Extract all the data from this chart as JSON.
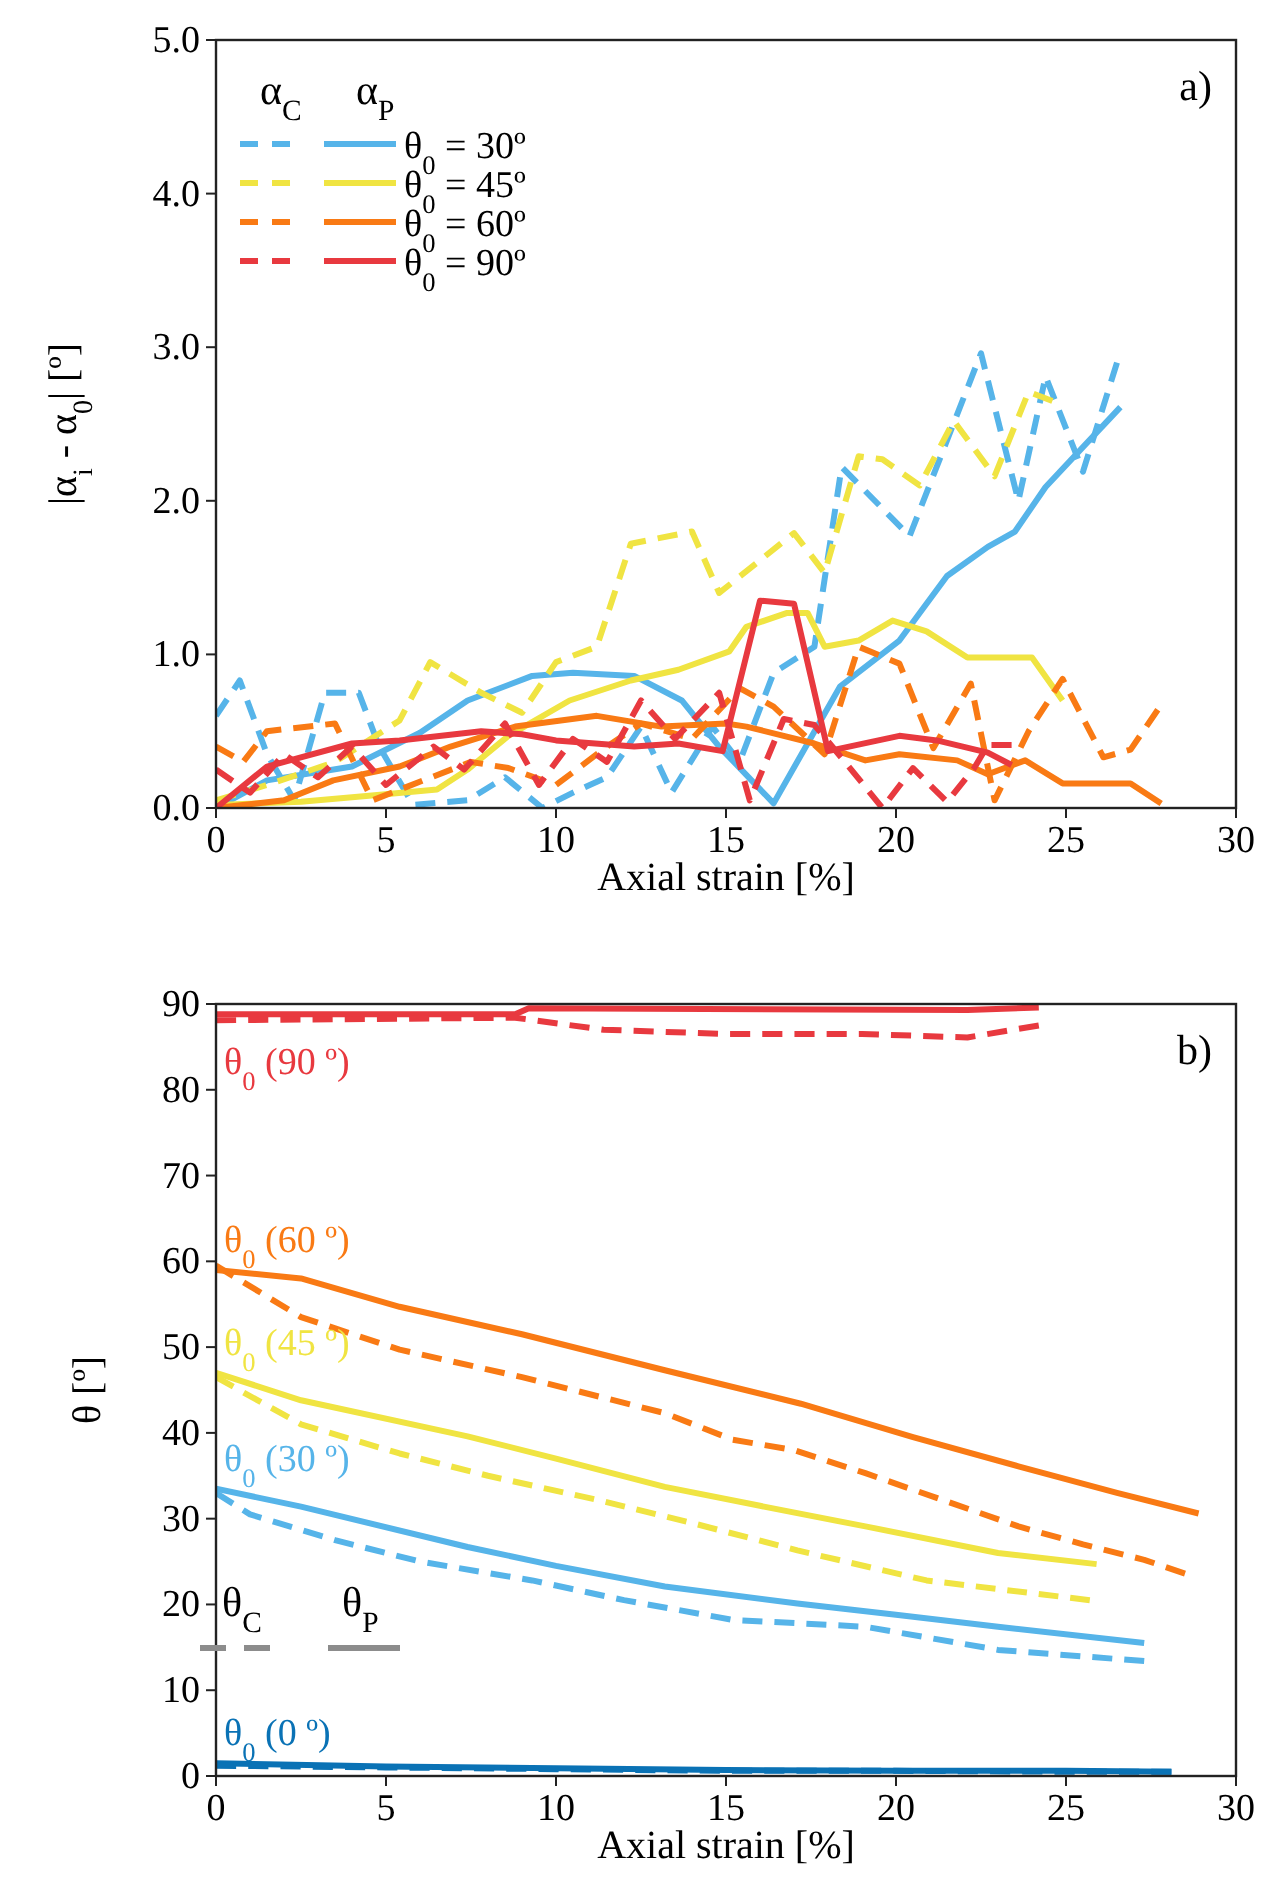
{
  "chart_data": [
    {
      "type": "line",
      "title": "a)",
      "xlabel": "Axial strain [%]",
      "ylabel": "|α$_{i}$ - α$_{0}$| [º]",
      "xlim": [
        0,
        30
      ],
      "xticks": [
        0,
        5,
        10,
        15,
        20,
        25,
        30
      ],
      "ylim": [
        0,
        5
      ],
      "yticks": [
        {
          "value": 0,
          "label": "0.0"
        },
        {
          "value": 1,
          "label": "1.0"
        },
        {
          "value": 2,
          "label": "2.0"
        },
        {
          "value": 3,
          "label": "3.0"
        },
        {
          "value": 4,
          "label": "4.0"
        },
        {
          "value": 5,
          "label": "5.0"
        }
      ],
      "legend": "top left",
      "annotations": [
        "α$_{C}$",
        "α$_{P}$"
      ],
      "series": [
        {
          "color": "#56b4e9",
          "line_style": "dashed",
          "x": [
            0,
            0.7,
            1.5,
            2.3,
            3.2,
            4.2,
            4.8,
            5.8,
            7.4,
            8.5,
            9.6,
            10.5,
            11.5,
            12.5,
            13.4,
            14.6,
            15.4,
            16.4,
            17.6,
            18.4,
            20.4,
            22.5,
            23.6,
            24.4,
            25.5,
            26.5
          ],
          "values": [
            0.6,
            0.83,
            0.35,
            0.05,
            0.75,
            0.75,
            0.4,
            0.02,
            0.05,
            0.2,
            0,
            0.1,
            0.2,
            0.53,
            0.1,
            0.53,
            0.3,
            0.88,
            1.05,
            2.22,
            1.77,
            2.96,
            2,
            2.81,
            2.19,
            2.9
          ]
        },
        {
          "name": "θ$_{0}$ = 30º",
          "color": "#56b4e9",
          "line_style": "solid",
          "x": [
            0,
            1.5,
            4,
            6,
            7.4,
            9.3,
            10.5,
            12.3,
            13.7,
            14.8,
            16.4,
            18.35,
            20.1,
            21.5,
            22.7,
            23.5,
            24.4,
            26.6
          ],
          "values": [
            0,
            0.18,
            0.27,
            0.49,
            0.7,
            0.86,
            0.88,
            0.86,
            0.7,
            0.4,
            0.03,
            0.79,
            1.09,
            1.51,
            1.7,
            1.8,
            2.09,
            2.61
          ]
        },
        {
          "color": "#f0e442",
          "line_style": "dashed",
          "x": [
            0,
            1.5,
            3.5,
            5.4,
            6.3,
            7.8,
            9,
            10,
            11.2,
            12.2,
            14,
            14.8,
            17,
            17.9,
            18.9,
            19.6,
            20.7,
            21.7,
            22.9,
            23.9,
            24.6
          ],
          "values": [
            0.05,
            0.15,
            0.3,
            0.57,
            0.95,
            0.75,
            0.62,
            0.95,
            1.05,
            1.72,
            1.8,
            1.4,
            1.79,
            1.53,
            2.29,
            2.27,
            2.1,
            2.52,
            2.16,
            2.71,
            2.65
          ]
        },
        {
          "name": "θ$_{0}$ = 45º",
          "color": "#f0e442",
          "line_style": "solid",
          "x": [
            0,
            2.5,
            4.5,
            6.5,
            7.4,
            8.6,
            10.4,
            12.2,
            13.6,
            15.1,
            15.6,
            16.8,
            17.4,
            17.9,
            18.9,
            19.9,
            20.9,
            22.1,
            24,
            24.9
          ],
          "values": [
            0.02,
            0.04,
            0.08,
            0.12,
            0.25,
            0.47,
            0.7,
            0.83,
            0.9,
            1.02,
            1.18,
            1.27,
            1.27,
            1.05,
            1.09,
            1.22,
            1.15,
            0.98,
            0.98,
            0.7
          ]
        },
        {
          "color": "#f97a14",
          "line_style": "dashed",
          "x": [
            0,
            0.8,
            1.5,
            3.5,
            4.6,
            6.1,
            7.5,
            8.6,
            10,
            11.5,
            12.5,
            14,
            15.4,
            16.4,
            17.9,
            18.9,
            20.1,
            21.1,
            22.2,
            22.9,
            23.9,
            24.9,
            26.1,
            26.9,
            27.7
          ],
          "values": [
            0.4,
            0.3,
            0.5,
            0.55,
            0.05,
            0.18,
            0.3,
            0.26,
            0.15,
            0.4,
            0.55,
            0.45,
            0.78,
            0.66,
            0.35,
            1.05,
            0.94,
            0.39,
            0.81,
            0.05,
            0.5,
            0.84,
            0.33,
            0.38,
            0.64
          ]
        },
        {
          "name": "θ$_{0}$ = 60º",
          "color": "#f97a14",
          "line_style": "solid",
          "x": [
            0,
            2,
            3.45,
            5.4,
            6.9,
            8.8,
            11.2,
            13.1,
            15,
            15.6,
            17.6,
            19.1,
            20.1,
            21.8,
            22.7,
            23.8,
            24.9,
            26.9,
            27.8
          ],
          "values": [
            0,
            0.05,
            0.18,
            0.27,
            0.4,
            0.53,
            0.6,
            0.53,
            0.55,
            0.53,
            0.42,
            0.31,
            0.35,
            0.31,
            0.22,
            0.31,
            0.16,
            0.16,
            0.03
          ]
        },
        {
          "color": "#e8393f",
          "line_style": "dashed",
          "x": [
            0,
            1,
            2,
            3,
            4,
            5,
            6.4,
            7.3,
            8.5,
            9.5,
            10.5,
            11.5,
            12.5,
            13.5,
            14.8,
            15.7,
            16.7,
            17.6,
            18.5,
            19.6,
            20.5,
            21.5,
            22.3,
            22.7,
            23.4
          ],
          "values": [
            0.25,
            0.1,
            0.35,
            0.2,
            0.4,
            0.15,
            0.4,
            0.25,
            0.55,
            0.15,
            0.45,
            0.3,
            0.7,
            0.45,
            0.75,
            0.05,
            0.58,
            0.54,
            0.3,
            0,
            0.26,
            0.04,
            0.26,
            0.41,
            0.41
          ]
        },
        {
          "name": "θ$_{0}$ = 90º",
          "color": "#e8393f",
          "line_style": "solid",
          "x": [
            0,
            1.5,
            4,
            5.4,
            7.8,
            9,
            10,
            12.3,
            13.6,
            14.9,
            16,
            17,
            18,
            20.1,
            21.2,
            22.7,
            23.4
          ],
          "values": [
            0,
            0.27,
            0.42,
            0.44,
            0.5,
            0.48,
            0.44,
            0.4,
            0.42,
            0.37,
            1.35,
            1.33,
            0.37,
            0.47,
            0.44,
            0.36,
            0.28
          ]
        }
      ]
    },
    {
      "type": "line",
      "title": "b)",
      "xlabel": "Axial strain [%]",
      "ylabel": "θ [º]",
      "xlim": [
        0,
        30
      ],
      "xticks": [
        0,
        5,
        10,
        15,
        20,
        25,
        30
      ],
      "ylim": [
        0,
        90
      ],
      "yticks": [
        0,
        10,
        20,
        30,
        40,
        50,
        60,
        70,
        80,
        90
      ],
      "legend": false,
      "annotations": [
        "θ$_{C}$",
        "θ$_{P}$"
      ],
      "series": [
        {
          "name": "θ$_{0}$ (90 º)",
          "color": "#e8393f",
          "line_style": "solid",
          "x": [
            0,
            8.8,
            9.2,
            22.1,
            24.2
          ],
          "values": [
            88.8,
            88.8,
            89.5,
            89.3,
            89.6
          ]
        },
        {
          "color": "#e8393f",
          "line_style": "dashed",
          "x": [
            0,
            8.8,
            11.4,
            15,
            19,
            22.1,
            24.2
          ],
          "values": [
            88.1,
            88.4,
            87,
            86.5,
            86.5,
            86.1,
            87.5
          ]
        },
        {
          "name": "θ$_{0}$ (60 º)",
          "color": "#f97a14",
          "line_style": "solid",
          "x": [
            0,
            2.5,
            5.4,
            9,
            13.2,
            17.2,
            20.5,
            23.6,
            26.5,
            28.9
          ],
          "values": [
            59,
            58,
            54.7,
            51.5,
            47.3,
            43.4,
            39.5,
            36.1,
            33,
            30.6
          ]
        },
        {
          "color": "#f97a14",
          "line_style": "dashed",
          "x": [
            0,
            2.5,
            5.4,
            9,
            13.2,
            15.2,
            17,
            19.1,
            21.5,
            23.6,
            25.5,
            27.3,
            28.5
          ],
          "values": [
            59.5,
            53.5,
            49.7,
            46.5,
            42.3,
            39.2,
            38,
            35.3,
            32,
            29.1,
            27,
            25.2,
            23.6
          ]
        },
        {
          "name": "θ$_{0}$ (45 º)",
          "color": "#f0e442",
          "line_style": "solid",
          "x": [
            0,
            2.5,
            7.4,
            10,
            13.2,
            16,
            19.1,
            23,
            25.9
          ],
          "values": [
            47,
            43.8,
            39.6,
            37,
            33.7,
            31.5,
            29.1,
            26,
            24.7
          ]
        },
        {
          "color": "#f0e442",
          "line_style": "dashed",
          "x": [
            0,
            2.5,
            5.4,
            8,
            11.2,
            14,
            17.1,
            20.9,
            25.7
          ],
          "values": [
            46.5,
            41,
            37.6,
            35,
            32.2,
            29.5,
            26.3,
            22.8,
            20.5
          ]
        },
        {
          "name": "θ$_{0}$ (30 º)",
          "color": "#56b4e9",
          "line_style": "solid",
          "x": [
            0,
            2.5,
            7.4,
            10,
            13.2,
            17.1,
            20,
            23,
            27.3
          ],
          "values": [
            33.5,
            31.4,
            26.7,
            24.5,
            22.1,
            20.1,
            18.8,
            17.4,
            15.5
          ]
        },
        {
          "color": "#56b4e9",
          "line_style": "dashed",
          "x": [
            0,
            1,
            3.5,
            6,
            9.3,
            12,
            15.2,
            19.1,
            23,
            27.3
          ],
          "values": [
            33,
            30.5,
            27.5,
            25,
            22.8,
            20.5,
            18.2,
            17.4,
            14.7,
            13.4
          ]
        },
        {
          "name": "θ$_{0}$ (0 º)",
          "color": "#0a72b5",
          "line_style": "solid",
          "x": [
            0,
            5,
            10,
            15,
            20,
            25,
            28.1
          ],
          "values": [
            1.5,
            1.1,
            0.9,
            0.7,
            0.6,
            0.6,
            0.5
          ]
        },
        {
          "color": "#0a72b5",
          "line_style": "dashed",
          "x": [
            0,
            5,
            10,
            15,
            20,
            25,
            28.1
          ],
          "values": [
            1.2,
            1,
            0.8,
            0.6,
            0.6,
            0.5,
            0.5
          ]
        }
      ]
    }
  ]
}
